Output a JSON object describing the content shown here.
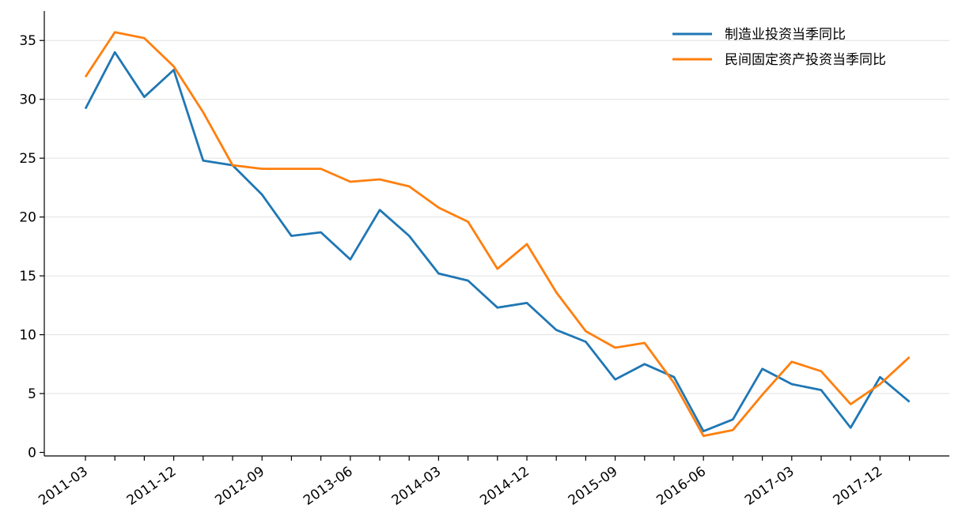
{
  "chart_data": {
    "type": "line",
    "title": "",
    "xlabel": "",
    "ylabel": "",
    "x": [
      "2011-03",
      "2011-06",
      "2011-09",
      "2011-12",
      "2012-03",
      "2012-06",
      "2012-09",
      "2012-12",
      "2013-03",
      "2013-06",
      "2013-09",
      "2013-12",
      "2014-03",
      "2014-06",
      "2014-09",
      "2014-12",
      "2015-03",
      "2015-06",
      "2015-09",
      "2015-12",
      "2016-03",
      "2016-06",
      "2016-09",
      "2016-12",
      "2017-03",
      "2017-06",
      "2017-09",
      "2017-12",
      "2018-03"
    ],
    "x_tick_labels": [
      "2011-03",
      "2011-12",
      "2012-09",
      "2013-06",
      "2014-03",
      "2014-12",
      "2015-09",
      "2016-06",
      "2017-03",
      "2017-12"
    ],
    "ylim": [
      -0.3,
      37.5
    ],
    "y_ticks": [
      0,
      5,
      10,
      15,
      20,
      25,
      30,
      35
    ],
    "grid": "y",
    "legend_position": "top-right",
    "series": [
      {
        "name": "制造业投资当季同比",
        "color": "#1f77b4",
        "values": [
          29.2,
          34.0,
          30.2,
          32.5,
          24.8,
          24.4,
          21.9,
          18.4,
          18.7,
          16.4,
          20.6,
          18.4,
          15.2,
          14.6,
          12.3,
          12.7,
          10.4,
          9.4,
          6.2,
          7.5,
          6.4,
          1.8,
          2.8,
          7.1,
          5.8,
          5.3,
          2.1,
          6.4,
          4.3
        ]
      },
      {
        "name": "民间固定资产投资当季同比",
        "color": "#ff7f0e",
        "values": [
          31.9,
          35.7,
          35.2,
          32.8,
          28.9,
          24.4,
          24.1,
          24.1,
          24.1,
          23.0,
          23.2,
          22.6,
          20.8,
          19.6,
          15.6,
          17.7,
          13.6,
          10.3,
          8.9,
          9.3,
          5.9,
          1.4,
          1.9,
          4.9,
          7.7,
          6.9,
          4.1,
          5.8,
          8.1
        ]
      }
    ]
  }
}
